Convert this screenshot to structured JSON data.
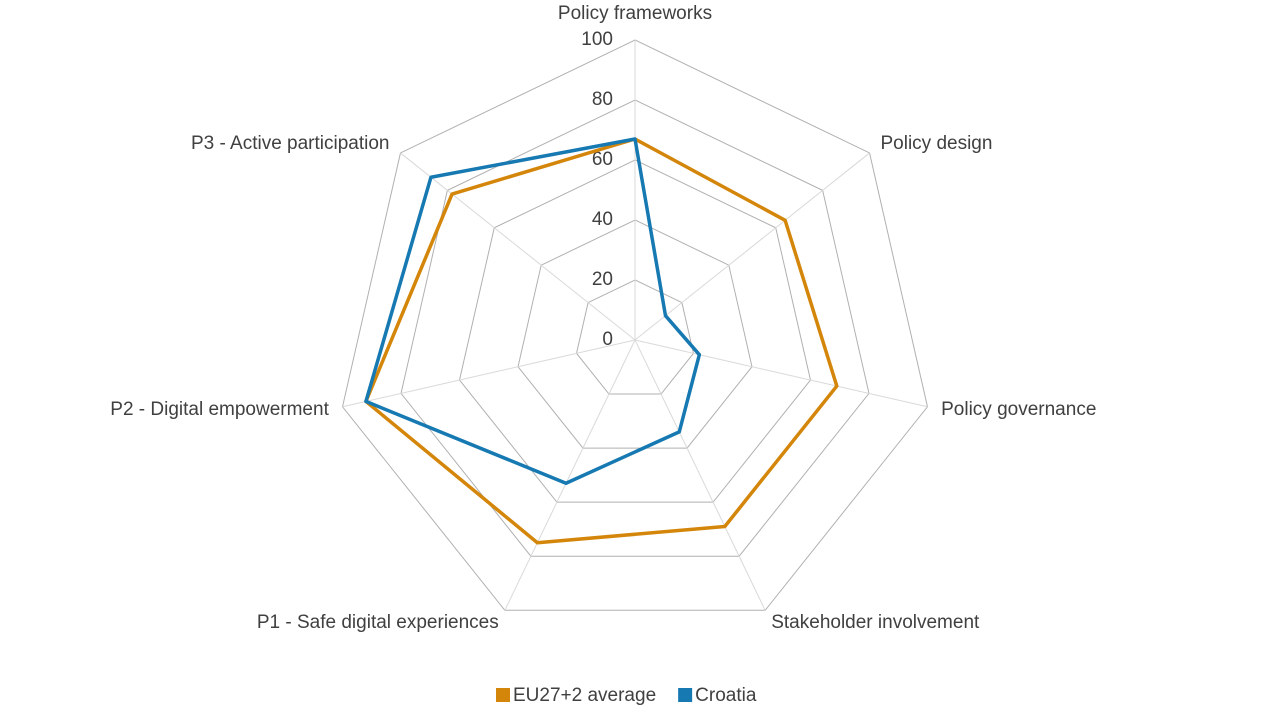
{
  "chart_data": {
    "type": "radar",
    "categories": [
      "Policy frameworks",
      "Policy design",
      "Policy governance",
      "Stakeholder involvement",
      "P1 - Safe digital experiences",
      "P2 - Digital empowerment",
      "P3 - Active participation"
    ],
    "series": [
      {
        "name": "EU27+2 average",
        "color": "#d4860b",
        "values": [
          67,
          64,
          69,
          69,
          75,
          92,
          78
        ]
      },
      {
        "name": "Croatia",
        "color": "#1679b2",
        "values": [
          67,
          13,
          22,
          34,
          53,
          92,
          87
        ]
      }
    ],
    "ylim": [
      0,
      100
    ],
    "yticks": [
      0,
      20,
      40,
      60,
      80,
      100
    ],
    "grid": true,
    "legend": "bottom"
  }
}
